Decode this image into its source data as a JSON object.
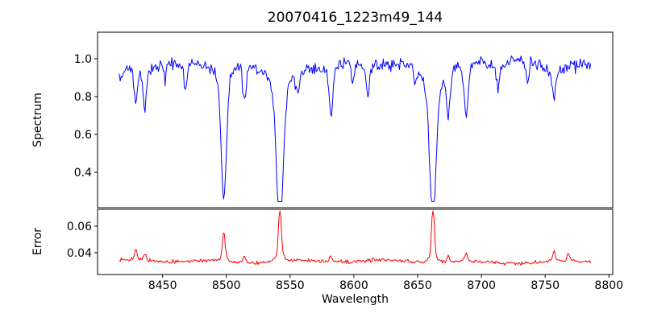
{
  "chart_data": {
    "type": "line",
    "title": "20070416_1223m49_144",
    "xlabel": "Wavelength",
    "xlim": [
      8399,
      8803
    ],
    "xticks": [
      8450,
      8500,
      8550,
      8600,
      8650,
      8700,
      8750,
      8800
    ],
    "xticklabels": [
      "8450",
      "8500",
      "8550",
      "8600",
      "8650",
      "8700",
      "8750",
      "8800"
    ],
    "data_wavelength_range": [
      8416,
      8786
    ],
    "sample_step": 0.75,
    "grid": false,
    "legend": "none",
    "panels": [
      {
        "name": "spectrum",
        "ylabel": "Spectrum",
        "ylim": [
          0.213,
          1.14
        ],
        "yticks": [
          0.4,
          0.6,
          0.8,
          1.0
        ],
        "yticklabels": [
          "0.4",
          "0.6",
          "0.8",
          "1.0"
        ],
        "line_color": "#0000ff",
        "continuum_level": 0.97,
        "noise_amplitude": 0.016,
        "max_flux": 1.11,
        "absorption_lines": [
          {
            "center": 8417,
            "depth": 0.08,
            "sigma": 1.8
          },
          {
            "center": 8429,
            "depth": 0.17,
            "sigma": 1.2
          },
          {
            "center": 8436,
            "depth": 0.19,
            "sigma": 1.2
          },
          {
            "center": 8452,
            "depth": 0.08,
            "sigma": 1.0
          },
          {
            "center": 8468,
            "depth": 0.11,
            "sigma": 1.2
          },
          {
            "center": 8498,
            "depth": 0.62,
            "sigma": 2.0
          },
          {
            "center": 8514,
            "depth": 0.17,
            "sigma": 1.3
          },
          {
            "center": 8542,
            "depth": 0.72,
            "sigma": 2.6
          },
          {
            "center": 8556,
            "depth": 0.1,
            "sigma": 1.2
          },
          {
            "center": 8582,
            "depth": 0.21,
            "sigma": 1.4
          },
          {
            "center": 8599,
            "depth": 0.1,
            "sigma": 1.0
          },
          {
            "center": 8611,
            "depth": 0.14,
            "sigma": 1.2
          },
          {
            "center": 8648,
            "depth": 0.08,
            "sigma": 1.0
          },
          {
            "center": 8662,
            "depth": 0.68,
            "sigma": 2.4
          },
          {
            "center": 8674,
            "depth": 0.21,
            "sigma": 1.3
          },
          {
            "center": 8688,
            "depth": 0.25,
            "sigma": 1.4
          },
          {
            "center": 8713,
            "depth": 0.12,
            "sigma": 1.2
          },
          {
            "center": 8736,
            "depth": 0.1,
            "sigma": 1.0
          },
          {
            "center": 8757,
            "depth": 0.15,
            "sigma": 1.2
          }
        ]
      },
      {
        "name": "error",
        "ylabel": "Error",
        "ylim": [
          0.0236,
          0.0727
        ],
        "yticks": [
          0.04,
          0.06
        ],
        "yticklabels": [
          "0.04",
          "0.06"
        ],
        "line_color": "#ff0000",
        "baseline_level": 0.0335,
        "noise_amplitude": 0.0009,
        "error_spikes": [
          {
            "center": 8429,
            "height": 0.006,
            "sigma": 1.0
          },
          {
            "center": 8436,
            "height": 0.004,
            "sigma": 1.0
          },
          {
            "center": 8498,
            "height": 0.019,
            "sigma": 1.0
          },
          {
            "center": 8514,
            "height": 0.004,
            "sigma": 0.9
          },
          {
            "center": 8542,
            "height": 0.034,
            "sigma": 1.1
          },
          {
            "center": 8582,
            "height": 0.004,
            "sigma": 0.9
          },
          {
            "center": 8662,
            "height": 0.038,
            "sigma": 1.0
          },
          {
            "center": 8674,
            "height": 0.004,
            "sigma": 0.9
          },
          {
            "center": 8688,
            "height": 0.005,
            "sigma": 0.9
          },
          {
            "center": 8757,
            "height": 0.006,
            "sigma": 0.9
          },
          {
            "center": 8768,
            "height": 0.006,
            "sigma": 0.9
          }
        ]
      }
    ],
    "axis_color": "#000000",
    "background_color": "#ffffff"
  }
}
